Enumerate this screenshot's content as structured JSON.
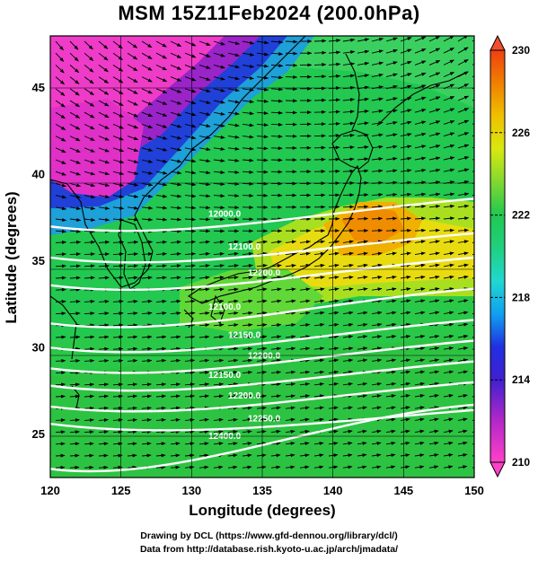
{
  "title": "MSM 15Z11Feb2024 (200.0hPa)",
  "xlabel": "Longitude (degrees)",
  "ylabel": "Latitude  (degrees)",
  "x_ticks": [
    "120",
    "125",
    "130",
    "135",
    "140",
    "145",
    "150"
  ],
  "y_ticks": [
    "45",
    "40",
    "35",
    "30",
    "25"
  ],
  "colorbar": {
    "ticks": [
      "230",
      "226",
      "222",
      "218",
      "214",
      "210"
    ],
    "min": 210,
    "max": 230
  },
  "contours": [
    {
      "label": "12000.0",
      "lat_start": 37.0,
      "lat_end": 38.6
    },
    {
      "label": "12100.0",
      "lat_start": 35.2,
      "lat_end": 36.6
    },
    {
      "label": "12200.0",
      "lat_start": 33.6,
      "lat_end": 35.2
    },
    {
      "label": "12100.0",
      "lat_start": 31.4,
      "lat_end": 33.4
    },
    {
      "label": "12150.0",
      "lat_start": 30.0,
      "lat_end": 31.6
    },
    {
      "label": "12200.0",
      "lat_start": 28.8,
      "lat_end": 30.4
    },
    {
      "label": "12150.0",
      "lat_start": 27.8,
      "lat_end": 29.2
    },
    {
      "label": "12200.0",
      "lat_start": 26.6,
      "lat_end": 28.0
    },
    {
      "label": "12250.0",
      "lat_start": 25.6,
      "lat_end": 26.4
    },
    {
      "label": "12400.0",
      "lat_start": 23.0,
      "lat_end": 26.7
    }
  ],
  "credits": {
    "line1": "Drawing by DCL (https://www.gfd-dennou.org/library/dcl/)",
    "line2": "Data from http://database.rish.kyoto-u.ac.jp/arch/jmadata/"
  },
  "colors": {
    "colormap": [
      "#ff40c8",
      "#7a1ec8",
      "#2020d0",
      "#00b4f0",
      "#20d8a0",
      "#20c850",
      "#9ae020",
      "#f0e000",
      "#f0a000",
      "#f06000"
    ],
    "contour": "#ffffff",
    "vector": "#000000",
    "coast": "#000000"
  }
}
